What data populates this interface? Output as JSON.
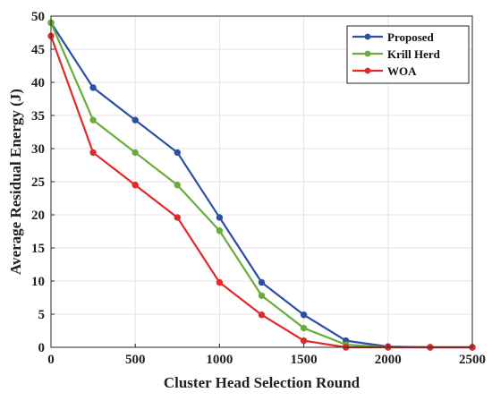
{
  "chart_data": {
    "type": "line",
    "title": "",
    "xlabel": "Cluster Head Selection Round",
    "ylabel": "Average Residual Energy (J)",
    "xlim": [
      0,
      2500
    ],
    "ylim": [
      0,
      50
    ],
    "xticks": [
      0,
      500,
      1000,
      1500,
      2000,
      2500
    ],
    "yticks": [
      0,
      5,
      10,
      15,
      20,
      25,
      30,
      35,
      40,
      45,
      50
    ],
    "grid": true,
    "legend_position": "top-right",
    "x": [
      0,
      250,
      500,
      750,
      1000,
      1250,
      1500,
      1750,
      2000,
      2250,
      2500
    ],
    "series": [
      {
        "name": "Proposed",
        "color": "#2c4fa3",
        "values": [
          49,
          39.2,
          34.3,
          29.4,
          19.6,
          9.8,
          4.9,
          1.0,
          0.1,
          0,
          0
        ]
      },
      {
        "name": "Krill Herd",
        "color": "#6aac3a",
        "values": [
          49,
          34.3,
          29.4,
          24.5,
          17.6,
          7.8,
          2.9,
          0.4,
          0,
          0,
          0
        ]
      },
      {
        "name": "WOA",
        "color": "#e02a2a",
        "values": [
          47,
          29.4,
          24.5,
          19.6,
          9.8,
          4.9,
          1.0,
          0,
          0,
          0,
          0
        ]
      }
    ]
  }
}
